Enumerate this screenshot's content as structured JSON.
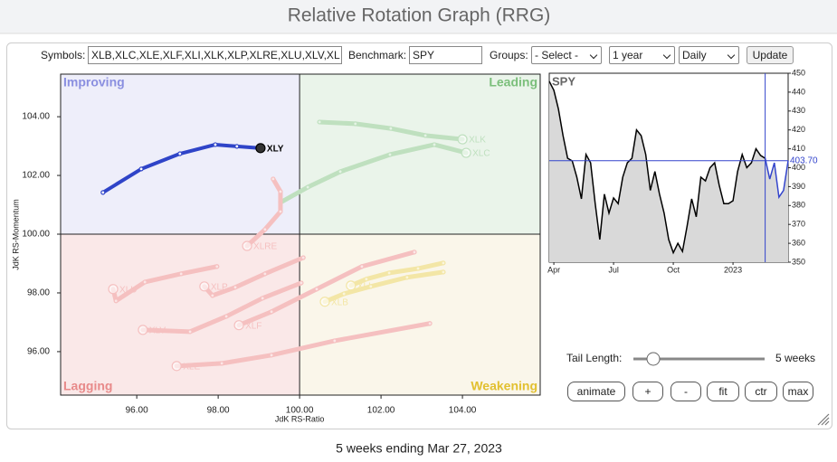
{
  "header": {
    "title": "Relative Rotation Graph (RRG)"
  },
  "controls": {
    "symbols_label": "Symbols:",
    "symbols": "XLB,XLC,XLE,XLF,XLI,XLK,XLP,XLRE,XLU,XLV,XL",
    "benchmark_label": "Benchmark:",
    "benchmark": "SPY",
    "groups_label": "Groups:",
    "groups": "- Select -",
    "period": "1 year",
    "frequency": "Daily",
    "update": "Update"
  },
  "tail": {
    "label": "Tail Length:",
    "value": "5 weeks"
  },
  "buttons": [
    "animate",
    "+",
    "-",
    "fit",
    "ctr",
    "max"
  ],
  "footer": "5 weeks ending Mar 27, 2023",
  "chart_data": [
    {
      "type": "scatter",
      "x_label": "JdK RS-Ratio",
      "y_label": "JdK RS-Momentum",
      "quadrants": [
        {
          "name": "Improving",
          "color": "#8a8fe0",
          "fill": "#eeeefa"
        },
        {
          "name": "Leading",
          "color": "#7bbf7b",
          "fill": "#eaf4ea"
        },
        {
          "name": "Lagging",
          "color": "#e88a8a",
          "fill": "#fae8e8"
        },
        {
          "name": "Weakening",
          "color": "#e2c030",
          "fill": "#faf6ea"
        }
      ],
      "xlim": [
        94.13,
        105.91
      ],
      "ylim": [
        94.52,
        105.45
      ],
      "xticks": [
        {
          "value": 96,
          "label": "96.00"
        },
        {
          "value": 98,
          "label": "98.00"
        },
        {
          "value": 100,
          "label": "100.00"
        },
        {
          "value": 102,
          "label": "102.00"
        },
        {
          "value": 104,
          "label": "104.00"
        }
      ],
      "yticks": [
        {
          "value": 96,
          "label": "96.00"
        },
        {
          "value": 98,
          "label": "98.00"
        },
        {
          "value": 100,
          "label": "100.00"
        },
        {
          "value": 102,
          "label": "102.00"
        },
        {
          "value": 104,
          "label": "104.00"
        }
      ],
      "series": [
        {
          "name": "XLK",
          "color": "#bfe0bf",
          "x": [
            100.49,
            101.37,
            102.24,
            103.09,
            104.0
          ],
          "values": [
            103.82,
            103.76,
            103.6,
            103.36,
            103.23
          ]
        },
        {
          "name": "XLC",
          "color": "#bfe0bf",
          "x": [
            99.53,
            100.2,
            101.0,
            102.22,
            103.31,
            104.09
          ],
          "values": [
            101.08,
            101.6,
            102.13,
            102.71,
            103.05,
            102.77
          ]
        },
        {
          "name": "XLRE",
          "color": "#f5c0c0",
          "x": [
            99.35,
            99.53,
            99.53,
            99.15,
            98.71
          ],
          "values": [
            101.88,
            101.45,
            100.77,
            100.16,
            99.6
          ]
        },
        {
          "name": "XLU",
          "color": "#f5c0c0",
          "x": [
            97.97,
            97.09,
            96.2,
            95.49,
            95.42
          ],
          "values": [
            98.9,
            98.65,
            98.37,
            97.73,
            98.13
          ]
        },
        {
          "name": "XLP",
          "color": "#f5c0c0",
          "x": [
            100.09,
            99.15,
            98.42,
            97.86,
            97.66
          ],
          "values": [
            99.2,
            98.65,
            98.19,
            97.91,
            98.22
          ]
        },
        {
          "name": "XLV",
          "color": "#f5c0c0",
          "x": [
            100.04,
            99.09,
            98.2,
            97.31,
            96.15
          ],
          "values": [
            98.34,
            97.82,
            97.2,
            96.68,
            96.74
          ]
        },
        {
          "name": "XLF",
          "color": "#f5c0c0",
          "x": [
            102.82,
            101.53,
            100.42,
            99.31,
            98.51
          ],
          "values": [
            99.39,
            98.9,
            98.13,
            97.36,
            96.9
          ]
        },
        {
          "name": "XLE",
          "color": "#f5c0c0",
          "x": [
            103.2,
            100.86,
            99.31,
            98.09,
            96.98
          ],
          "values": [
            96.96,
            96.37,
            95.88,
            95.6,
            95.51
          ]
        },
        {
          "name": "XLI",
          "color": "#f3e6a6",
          "x": [
            103.53,
            102.91,
            102.2,
            101.64,
            101.26
          ],
          "values": [
            99.02,
            98.83,
            98.68,
            98.47,
            98.25
          ]
        },
        {
          "name": "XLB",
          "color": "#f3e6a6",
          "x": [
            103.53,
            102.64,
            101.75,
            101.09,
            100.62
          ],
          "values": [
            98.71,
            98.53,
            98.22,
            97.97,
            97.7
          ]
        },
        {
          "name": "XLY",
          "color": "#2f44c8",
          "x": [
            95.17,
            96.11,
            97.06,
            97.93,
            98.46,
            99.04
          ],
          "values": [
            101.42,
            102.22,
            102.74,
            103.05,
            102.99,
            102.93
          ]
        }
      ]
    },
    {
      "type": "line",
      "title": "SPY",
      "color": "#000000",
      "highlight_color": "#3344cc",
      "highlight_from": 47,
      "fill": "#d9d9d9",
      "xlim": [
        0,
        52
      ],
      "ylim": [
        350,
        450
      ],
      "xticks": [
        {
          "value": 1,
          "label": "Apr"
        },
        {
          "value": 14,
          "label": "Jul"
        },
        {
          "value": 27,
          "label": "Oct"
        },
        {
          "value": 40,
          "label": "2023"
        }
      ],
      "yticks": [
        350,
        360,
        370,
        380,
        390,
        400,
        410,
        420,
        430,
        440,
        450
      ],
      "values": [
        445.7,
        441,
        431,
        417,
        405,
        403.6,
        395,
        383.5,
        407,
        402.6,
        381,
        362,
        386,
        376,
        384,
        381,
        395,
        402.6,
        405,
        420,
        417,
        407,
        388,
        398,
        386,
        376,
        362,
        355,
        360,
        355.7,
        369,
        383.5,
        374,
        395,
        393,
        400,
        402.6,
        390.7,
        381,
        381,
        382.5,
        398,
        407,
        400,
        402.6,
        410,
        406.5,
        405,
        394,
        402.6,
        384.4,
        388,
        403.7
      ],
      "last": {
        "value": 403.7,
        "label": "403.70"
      }
    }
  ]
}
